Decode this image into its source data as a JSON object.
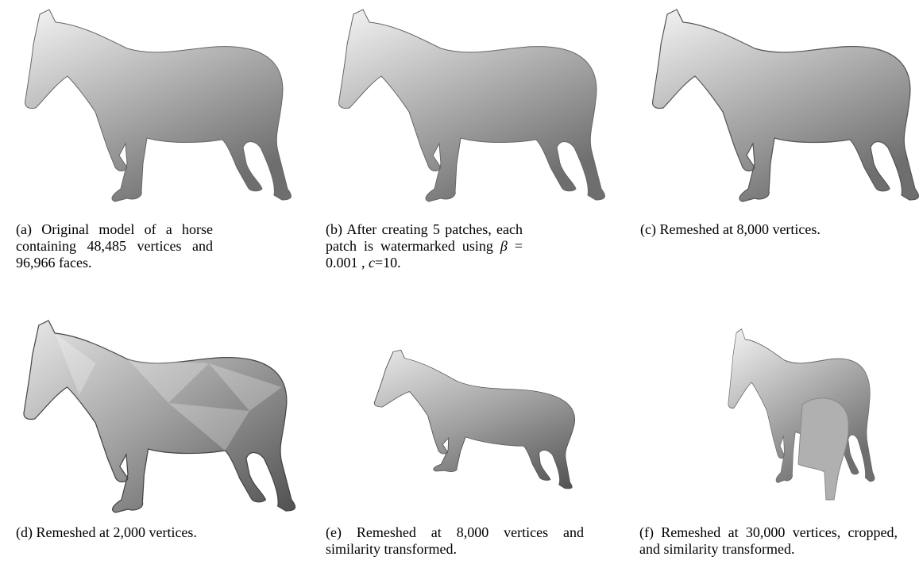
{
  "panels": [
    {
      "caption": "(a) Original model of a horse containing 48,485 vertices and 96,966 faces."
    },
    {
      "caption": "(b) After creating 5 patches, each patch is watermarked using",
      "beta": "β",
      "beta_value": "= 0.001  ,",
      "c": "c",
      "c_value": "=10."
    },
    {
      "caption": "(c) Remeshed at 8,000 vertices."
    },
    {
      "caption": "(d) Remeshed at 2,000 vertices."
    },
    {
      "caption": "(e) Remeshed at 8,000 vertices and similarity transformed."
    },
    {
      "caption": "(f) Remeshed at 30,000 vertices, cropped, and similarity transformed."
    }
  ]
}
